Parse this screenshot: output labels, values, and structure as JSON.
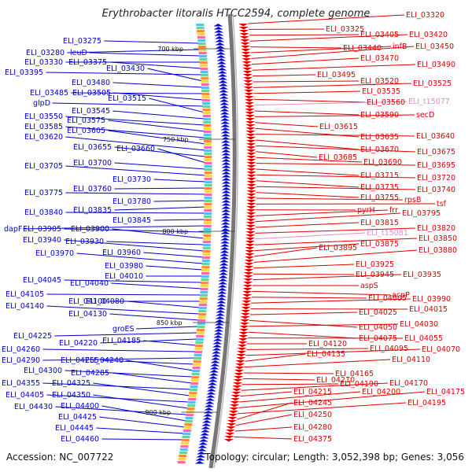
{
  "title": "Erythrobacter litoralis HTCC2594, complete genome",
  "footer": {
    "accession": "Accession: NC_007722",
    "summary": "Topology: circular; Length: 3,052,398 bp; Genes: 3,056"
  },
  "colors": {
    "left_strand": "#0000cc",
    "right_strand": "#dd0000",
    "trna": "#e48bd0",
    "backbone": "#777777"
  },
  "scale_marks": [
    "700 kbp",
    "750 kbp",
    "800 kbp",
    "850 kbp",
    "900 kbp"
  ],
  "left_labels": [
    "ELI_03275",
    "ELI_03280",
    "leuD",
    "ELI_03330",
    "ELI_03375",
    "ELI_03395",
    "ELI_03430",
    "ELI_03480",
    "ELI_03485",
    "ELI_03505",
    "glpD",
    "ELI_03515",
    "ELI_03545",
    "ELI_03550",
    "ELI_03575",
    "ELI_03585",
    "ELI_03605",
    "ELI_03620",
    "ELI_03655",
    "ELI_03660",
    "ELI_03700",
    "ELI_03705",
    "ELI_03730",
    "ELI_03760",
    "ELI_03775",
    "ELI_03780",
    "ELI_03835",
    "ELI_03840",
    "ELI_03845",
    "dapF",
    "ELI_03905",
    "ELI_03900",
    "ELI_03930",
    "ELI_03940",
    "ELI_03960",
    "ELI_03970",
    "ELI_03980",
    "ELI_04010",
    "ELI_04045",
    "ELI_04040",
    "ELI_04105",
    "ELI_04100",
    "ELI_04080",
    "ELI_04140",
    "ELI_04130",
    "groES",
    "ELI_04225",
    "ELI_04220",
    "ELI_04185",
    "ELI_04260",
    "ELI_04290",
    "ELI_04255",
    "ELI_04240",
    "ELI_04300",
    "ELI_04285",
    "ELI_04355",
    "ELI_04325",
    "ELI_04405",
    "ELI_04350",
    "ELI_04430",
    "ELI_04400",
    "ELI_04425",
    "ELI_04445",
    "ELI_04460"
  ],
  "right_labels": [
    "ELI_03320",
    "ELI_03325",
    "ELI_03405",
    "ELI_03420",
    "ELI_03440",
    "infB",
    "ELI_03450",
    "ELI_03470",
    "ELI_03490",
    "ELI_03495",
    "ELI_03520",
    "ELI_03525",
    "ELI_03535",
    "ELI_03560",
    "ELI_t15077",
    "ELI_03590",
    "secD",
    "ELI_03615",
    "ELI_03635",
    "ELI_03640",
    "ELI_03670",
    "ELI_03675",
    "ELI_03685",
    "ELI_03690",
    "ELI_03695",
    "ELI_03715",
    "ELI_03720",
    "ELI_03735",
    "ELI_03740",
    "ELI_03755",
    "rpsB",
    "tsf",
    "pyrH",
    "frr",
    "ELI_03795",
    "ELI_03815",
    "ELI_03820",
    "ELI_t15081",
    "ELI_03850",
    "ELI_03875",
    "ELI_03895",
    "ELI_03880",
    "ELI_03925",
    "ELI_03945",
    "ELI_03935",
    "aspS",
    "acpP",
    "ELI_04005",
    "ELI_03990",
    "ELI_04015",
    "ELI_04025",
    "ELI_04050",
    "ELI_04030",
    "ELI_04075",
    "ELI_04055",
    "ELI_04120",
    "ELI_04095",
    "ELI_04070",
    "ELI_04135",
    "ELI_04110",
    "ELI_04165",
    "ELI_04210",
    "ELI_04190",
    "ELI_04170",
    "ELI_04215",
    "ELI_04200",
    "ELI_04175",
    "ELI_04195",
    "ELI_04245",
    "ELI_04250",
    "ELI_04280",
    "ELI_04375"
  ]
}
